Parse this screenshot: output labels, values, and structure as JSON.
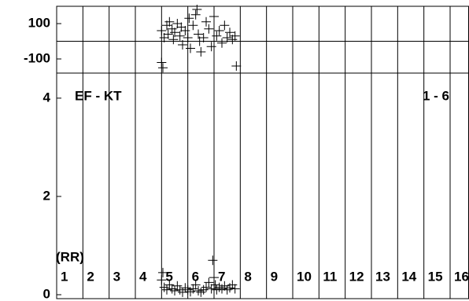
{
  "chart_data": [
    {
      "type": "scatter",
      "ylim": [
        -180,
        198
      ],
      "yticks": [
        -100,
        100
      ],
      "xlim": [
        1,
        16.72
      ],
      "zero_line": true,
      "color": "#000000",
      "x": [
        5.0,
        5.1,
        5.2,
        5.25,
        5.3,
        5.4,
        5.45,
        5.5,
        5.6,
        5.7,
        5.75,
        5.8,
        5.9,
        6.0,
        6.05,
        6.1,
        6.2,
        6.3,
        6.35,
        6.4,
        6.5,
        6.6,
        6.7,
        6.8,
        6.9,
        7.0,
        7.1,
        7.2,
        7.3,
        7.4,
        7.5,
        7.6,
        7.7,
        7.8,
        5.0,
        5.05,
        6.45,
        7.85
      ],
      "y": [
        60,
        20,
        90,
        40,
        110,
        70,
        10,
        50,
        100,
        30,
        80,
        -20,
        60,
        20,
        130,
        -40,
        90,
        150,
        180,
        40,
        -60,
        20,
        110,
        70,
        -30,
        140,
        30,
        60,
        -10,
        90,
        20,
        50,
        10,
        30,
        -120,
        -150,
        0,
        -140
      ]
    },
    {
      "type": "scatter",
      "ylim": [
        -0.08,
        4.51
      ],
      "yticks": [
        0,
        2,
        4
      ],
      "xlim": [
        1,
        16.72
      ],
      "xticks": [
        1,
        2,
        3,
        4,
        5,
        6,
        7,
        8,
        9,
        10,
        11,
        12,
        13,
        14,
        15,
        16
      ],
      "color": "#000000",
      "title": "EF - KT",
      "subtitle": "1 - 6",
      "x_label": "(RR)",
      "x": [
        5.0,
        5.1,
        5.2,
        5.3,
        5.4,
        5.5,
        5.6,
        5.7,
        5.8,
        5.9,
        6.0,
        6.1,
        6.2,
        6.3,
        6.4,
        6.5,
        6.6,
        6.7,
        6.8,
        6.9,
        7.0,
        7.05,
        7.1,
        7.2,
        7.3,
        7.4,
        7.5,
        7.6,
        7.7,
        7.8,
        5.05,
        6.95
      ],
      "y": [
        0.3,
        0.15,
        0.1,
        0.2,
        0.12,
        0.08,
        0.18,
        0.1,
        0.05,
        0.14,
        0.1,
        0.06,
        0.12,
        0.2,
        0.08,
        0.05,
        0.1,
        0.15,
        0.25,
        0.12,
        0.35,
        0.2,
        0.1,
        0.15,
        0.12,
        0.18,
        0.1,
        0.14,
        0.2,
        0.12,
        0.45,
        0.7
      ]
    }
  ]
}
